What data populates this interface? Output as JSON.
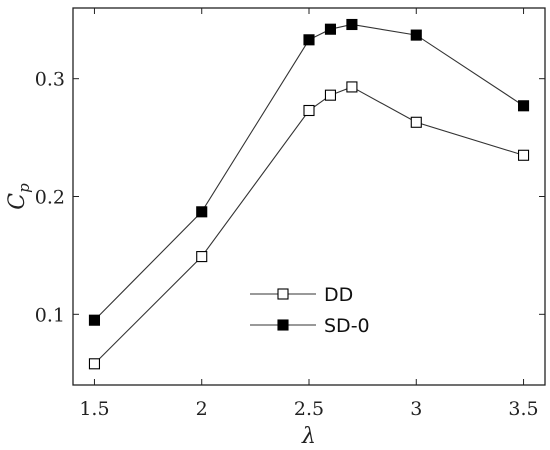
{
  "chart_data": {
    "type": "line",
    "title": "",
    "xlabel": "λ",
    "ylabel": "C_p",
    "xlim": [
      1.4,
      3.6
    ],
    "ylim": [
      0.04,
      0.36
    ],
    "xticks": [
      1.5,
      2,
      2.5,
      3,
      3.5
    ],
    "xtick_labels": [
      "1.5",
      "2",
      "2.5",
      "3",
      "3.5"
    ],
    "yticks": [
      0.1,
      0.2,
      0.3
    ],
    "ytick_labels": [
      "0.1",
      "0.2",
      "0.3"
    ],
    "grid": false,
    "legend_position": "center-bottom",
    "series": [
      {
        "name": "DD",
        "marker": "open-square",
        "color": "#333333",
        "x": [
          1.5,
          2,
          2.5,
          2.6,
          2.7,
          3,
          3.5
        ],
        "y": [
          0.058,
          0.149,
          0.273,
          0.286,
          0.293,
          0.263,
          0.235
        ]
      },
      {
        "name": "SD-0",
        "marker": "filled-square",
        "color": "#000000",
        "x": [
          1.5,
          2,
          2.5,
          2.6,
          2.7,
          3,
          3.5
        ],
        "y": [
          0.095,
          0.187,
          0.333,
          0.342,
          0.346,
          0.337,
          0.277
        ]
      }
    ]
  }
}
